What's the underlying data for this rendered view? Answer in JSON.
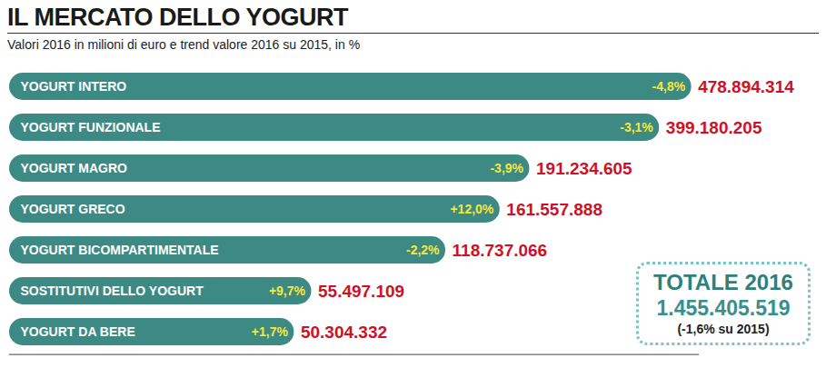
{
  "chart_data": {
    "type": "bar",
    "title": "IL MERCATO DELLO YOGURT",
    "subtitle": "Valori 2016 in milioni di euro e trend valore 2016 su 2015, in %",
    "orientation": "horizontal",
    "log": "x",
    "xlim": [
      10000000,
      500000000
    ],
    "tick_labels": false,
    "data_labels": true,
    "color": "#3d8a84",
    "categories": [
      "YOGURT INTERO",
      "YOGURT FUNZIONALE",
      "YOGURT MAGRO",
      "YOGURT GRECO",
      "YOGURT BICOMPARTIMENTALE",
      "SOSTITUTIVI DELLO YOGURT",
      "YOGURT DA BERE"
    ],
    "values": [
      478894314,
      399180205,
      191234605,
      161557888,
      118737066,
      55497109,
      50304332
    ],
    "value_labels": [
      "478.894.314",
      "399.180.205",
      "191.234.605",
      "161.557.888",
      "118.737.066",
      "55.497.109",
      "50.304.332"
    ],
    "trend": [
      -4.8,
      -3.1,
      -3.9,
      12.0,
      -2.2,
      9.7,
      1.7
    ],
    "trend_labels": [
      "-4,8%",
      "-3,1%",
      "-3,9%",
      "+12,0%",
      "-2,2%",
      "+9,7%",
      "+1,7%"
    ],
    "total": {
      "label": "TOTALE 2016",
      "value": 1455405519,
      "value_label": "1.455.405.519",
      "trend": -1.6,
      "trend_label": "(-1,6% su 2015)"
    }
  }
}
